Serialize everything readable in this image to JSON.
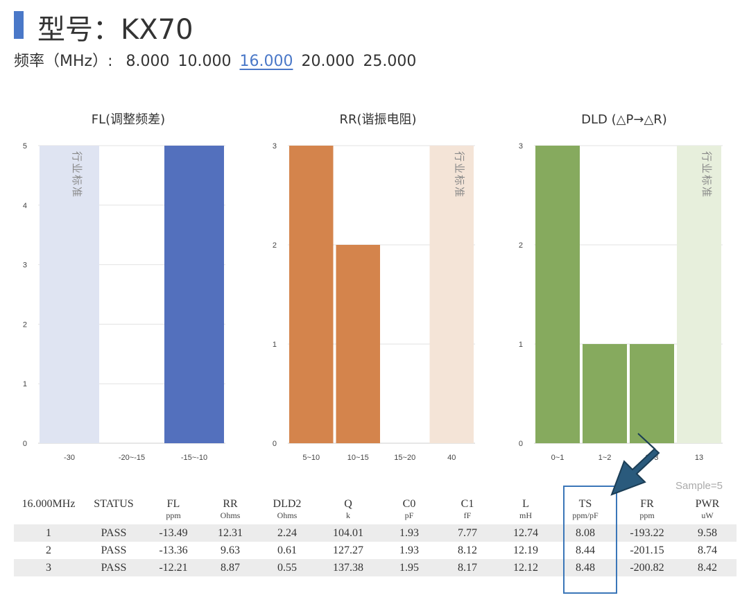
{
  "header": {
    "title": "型号：KX70",
    "freq_label": "频率（MHz）:",
    "frequencies": [
      "8.000",
      "10.000",
      "16.000",
      "20.000",
      "25.000"
    ],
    "active_index": 2
  },
  "chart_data": [
    {
      "type": "bar",
      "title": "FL(调整频差)",
      "categories": [
        "-30",
        "-20~-15",
        "-15~-10"
      ],
      "values": [
        0,
        0,
        5
      ],
      "ylim": [
        0,
        5
      ],
      "yticks": [
        0,
        1,
        2,
        3,
        4,
        5
      ],
      "bar_color": "#5370bd",
      "standard": {
        "label": "行业标准",
        "category_index": 0,
        "color": "#dfe4f2"
      }
    },
    {
      "type": "bar",
      "title": "RR(谐振电阻)",
      "categories": [
        "5~10",
        "10~15",
        "15~20",
        "40"
      ],
      "values": [
        3,
        2,
        0,
        0
      ],
      "ylim": [
        0,
        3
      ],
      "yticks": [
        0,
        1,
        2,
        3
      ],
      "bar_color": "#d4844c",
      "standard": {
        "label": "行业标准",
        "category_index": 3,
        "color": "#f4e4d7"
      }
    },
    {
      "type": "bar",
      "title": "DLD (△P→△R)",
      "categories": [
        "0~1",
        "1~2",
        "2~3",
        "13"
      ],
      "values": [
        3,
        1,
        1,
        0
      ],
      "ylim": [
        0,
        3
      ],
      "yticks": [
        0,
        1,
        2,
        3
      ],
      "bar_color": "#86aa5e",
      "standard": {
        "label": "行业标准",
        "category_index": 3,
        "color": "#e7efdc"
      }
    }
  ],
  "table": {
    "sample_label": "Sample=5",
    "columns": [
      {
        "name": "16.000MHz",
        "unit": ""
      },
      {
        "name": "STATUS",
        "unit": ""
      },
      {
        "name": "FL",
        "unit": "ppm"
      },
      {
        "name": "RR",
        "unit": "Ohms"
      },
      {
        "name": "DLD2",
        "unit": "Ohms"
      },
      {
        "name": "Q",
        "unit": "k"
      },
      {
        "name": "C0",
        "unit": "pF"
      },
      {
        "name": "C1",
        "unit": "fF"
      },
      {
        "name": "L",
        "unit": "mH"
      },
      {
        "name": "TS",
        "unit": "ppm/pF"
      },
      {
        "name": "FR",
        "unit": "ppm"
      },
      {
        "name": "PWR",
        "unit": "uW"
      }
    ],
    "rows": [
      [
        "1",
        "PASS",
        "-13.49",
        "12.31",
        "2.24",
        "104.01",
        "1.93",
        "7.77",
        "12.74",
        "8.08",
        "-193.22",
        "9.58"
      ],
      [
        "2",
        "PASS",
        "-13.36",
        "9.63",
        "0.61",
        "127.27",
        "1.93",
        "8.12",
        "12.19",
        "8.44",
        "-201.15",
        "8.74"
      ],
      [
        "3",
        "PASS",
        "-12.21",
        "8.87",
        "0.55",
        "137.38",
        "1.95",
        "8.17",
        "12.12",
        "8.48",
        "-200.82",
        "8.42"
      ]
    ]
  },
  "colors": {
    "accent": "#4a78c8",
    "highlight_box": "#3a76b8",
    "arrow": "#2a5a7c"
  }
}
